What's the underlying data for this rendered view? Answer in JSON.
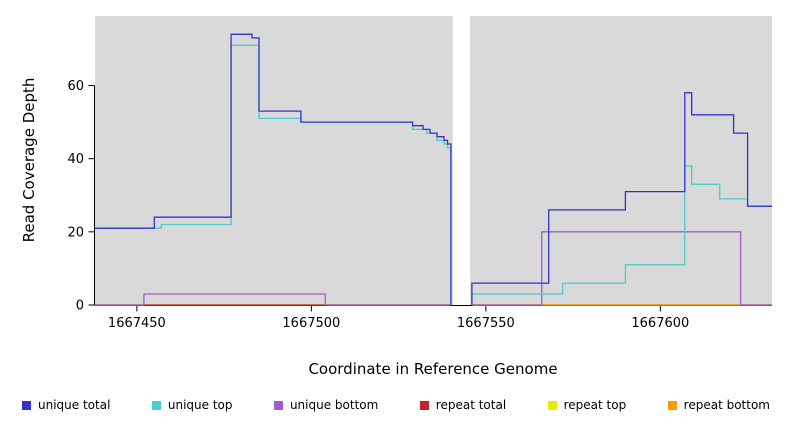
{
  "chart_data": {
    "type": "line",
    "subtype": "step-coverage",
    "title": "",
    "xlabel": "Coordinate in Reference Genome",
    "ylabel": "Read Coverage Depth",
    "x_ticks": [
      1667450,
      1667500,
      1667550,
      1667600
    ],
    "y_ticks": [
      0,
      20,
      40,
      60
    ],
    "xlim": [
      1667438,
      1667632
    ],
    "ylim": [
      0,
      79
    ],
    "panel_bg": "#d9d9d9",
    "axis_color": "#000000",
    "gap_region": [
      1667540.5,
      1667545.5
    ],
    "legend_position": "bottom",
    "grid": false,
    "series": [
      {
        "key": "unique-total",
        "label": "unique total",
        "color": "#3333cc",
        "segments": [
          [
            [
              1667438,
              21
            ],
            [
              1667455,
              24
            ],
            [
              1667477,
              74
            ],
            [
              1667483,
              73
            ],
            [
              1667485,
              53
            ],
            [
              1667497,
              50
            ],
            [
              1667529,
              49
            ],
            [
              1667532,
              48
            ],
            [
              1667534,
              47
            ],
            [
              1667536,
              46
            ],
            [
              1667538,
              45
            ],
            [
              1667539,
              44
            ],
            [
              1667540,
              0
            ]
          ],
          [
            [
              1667546,
              0
            ],
            [
              1667546,
              6
            ],
            [
              1667568,
              26
            ],
            [
              1667590,
              31
            ],
            [
              1667607,
              58
            ],
            [
              1667609,
              52
            ],
            [
              1667621,
              47
            ],
            [
              1667625,
              27
            ],
            [
              1667632,
              27
            ]
          ]
        ]
      },
      {
        "key": "unique-top",
        "label": "unique top",
        "color": "#4dcccc",
        "segments": [
          [
            [
              1667438,
              21
            ],
            [
              1667457,
              22
            ],
            [
              1667477,
              71
            ],
            [
              1667485,
              51
            ],
            [
              1667497,
              50
            ],
            [
              1667529,
              48
            ],
            [
              1667533,
              47
            ],
            [
              1667536,
              45
            ],
            [
              1667538,
              44
            ],
            [
              1667539,
              43
            ],
            [
              1667540,
              0
            ]
          ],
          [
            [
              1667546,
              0
            ],
            [
              1667546,
              3
            ],
            [
              1667572,
              6
            ],
            [
              1667590,
              11
            ],
            [
              1667607,
              38
            ],
            [
              1667609,
              33
            ],
            [
              1667617,
              29
            ],
            [
              1667625,
              27
            ],
            [
              1667632,
              27
            ]
          ]
        ]
      },
      {
        "key": "unique-bottom",
        "label": "unique bottom",
        "color": "#a35bcc",
        "segments": [
          [
            [
              1667438,
              0
            ],
            [
              1667452,
              3
            ],
            [
              1667504,
              0
            ],
            [
              1667540,
              0
            ]
          ],
          [
            [
              1667546,
              0
            ],
            [
              1667566,
              20
            ],
            [
              1667623,
              0
            ],
            [
              1667632,
              0
            ]
          ]
        ]
      },
      {
        "key": "repeat-total",
        "label": "repeat total",
        "color": "#cc2222",
        "segments": [
          [
            [
              1667438,
              0
            ],
            [
              1667540,
              0
            ]
          ],
          [
            [
              1667546,
              0
            ],
            [
              1667632,
              0
            ]
          ]
        ]
      },
      {
        "key": "repeat-top",
        "label": "repeat top",
        "color": "#e8e800",
        "segments": [
          [
            [
              1667438,
              0
            ],
            [
              1667540,
              0
            ]
          ],
          [
            [
              1667546,
              0
            ],
            [
              1667632,
              0
            ]
          ]
        ]
      },
      {
        "key": "repeat-bottom",
        "label": "repeat bottom",
        "color": "#ff9900",
        "segments": [
          [
            [
              1667546,
              0
            ],
            [
              1667632,
              0
            ]
          ]
        ]
      }
    ]
  }
}
